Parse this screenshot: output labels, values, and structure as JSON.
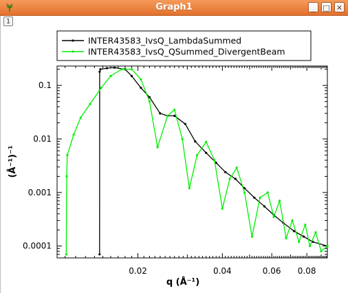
{
  "window": {
    "title": "Graph1",
    "minimize_label": "_",
    "maximize_label": "□",
    "close_label": "✕",
    "layer_label": "1"
  },
  "chart_data": {
    "type": "line",
    "xlabel": "q (Å⁻¹)",
    "ylabel": "(Å⁻¹)⁻¹",
    "x_scale": "log",
    "y_scale": "log",
    "xlim": [
      0.0103,
      0.0947
    ],
    "ylim": [
      6e-05,
      0.23
    ],
    "x_ticks": [
      {
        "value": 0.02,
        "label": "0.02"
      },
      {
        "value": 0.04,
        "label": "0.04"
      },
      {
        "value": 0.06,
        "label": "0.06"
      },
      {
        "value": 0.08,
        "label": "0.08"
      }
    ],
    "y_ticks": [
      {
        "value": 0.1,
        "label": "0.1"
      },
      {
        "value": 0.01,
        "label": "0.01"
      },
      {
        "value": 0.001,
        "label": "0.001"
      },
      {
        "value": 0.0001,
        "label": "0.0001"
      }
    ],
    "legend_position": "top",
    "series": [
      {
        "name": "INTER43583_IvsQ_LambdaSummed",
        "color": "#000000",
        "x": [
          0.0146,
          0.01461,
          0.0147,
          0.0155,
          0.0165,
          0.018,
          0.019,
          0.0205,
          0.022,
          0.024,
          0.0255,
          0.027,
          0.0295,
          0.032,
          0.035,
          0.038,
          0.041,
          0.0445,
          0.048,
          0.052,
          0.0565,
          0.061,
          0.066,
          0.072,
          0.078,
          0.084,
          0.0947
        ],
        "y": [
          7e-05,
          0.18,
          0.2,
          0.21,
          0.215,
          0.2,
          0.15,
          0.09,
          0.06,
          0.03,
          0.027,
          0.027,
          0.019,
          0.009,
          0.0055,
          0.0036,
          0.0024,
          0.0018,
          0.0012,
          0.0008,
          0.00055,
          0.00038,
          0.00027,
          0.00019,
          0.00015,
          0.00012,
          0.0001
        ]
      },
      {
        "name": "INTER43583_IvsQ_QSummed_DivergentBeam",
        "color": "#00ee00",
        "x": [
          0.0111,
          0.01115,
          0.0112,
          0.0118,
          0.0125,
          0.0135,
          0.0148,
          0.016,
          0.0175,
          0.019,
          0.0205,
          0.022,
          0.0235,
          0.0255,
          0.027,
          0.0288,
          0.0305,
          0.0325,
          0.035,
          0.0375,
          0.04,
          0.0425,
          0.045,
          0.048,
          0.051,
          0.0545,
          0.058,
          0.061,
          0.064,
          0.0675,
          0.071,
          0.075,
          0.079,
          0.082,
          0.086,
          0.09,
          0.0947
        ],
        "y": [
          7e-05,
          0.002,
          0.005,
          0.012,
          0.025,
          0.045,
          0.09,
          0.15,
          0.2,
          0.2,
          0.13,
          0.05,
          0.007,
          0.027,
          0.035,
          0.01,
          0.0012,
          0.005,
          0.0088,
          0.004,
          0.0005,
          0.0018,
          0.0029,
          0.001,
          0.00015,
          0.0008,
          0.001,
          0.00035,
          0.0007,
          0.00014,
          0.0003,
          0.00012,
          0.00025,
          0.0001,
          0.00018,
          8e-05,
          0.0001
        ]
      }
    ]
  }
}
